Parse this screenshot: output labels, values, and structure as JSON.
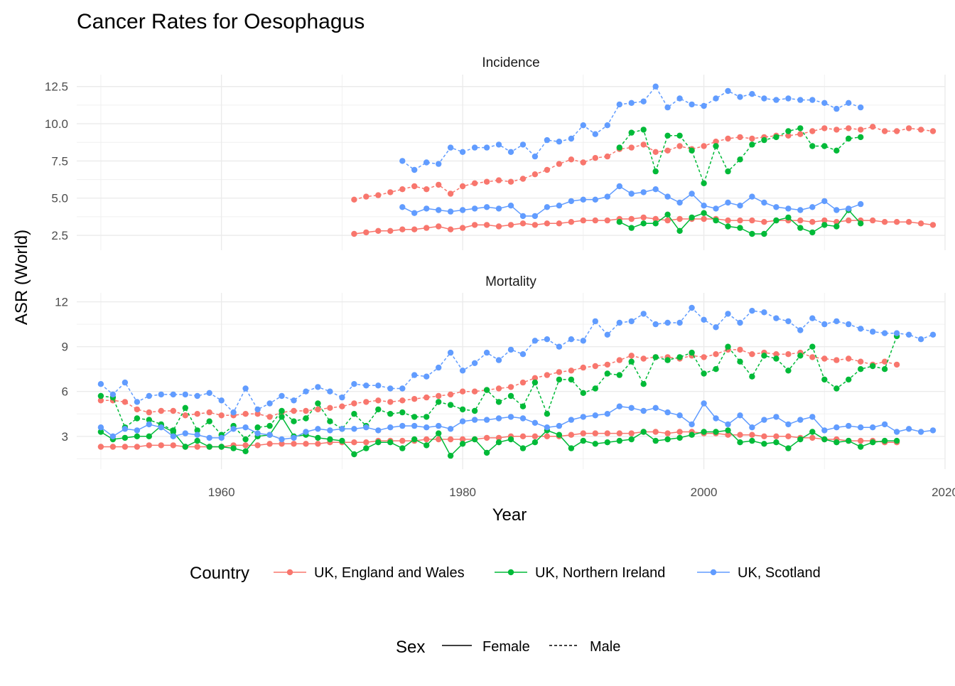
{
  "chart_data": {
    "type": "line",
    "title": "Cancer Rates for Oesophagus",
    "xlabel": "Year",
    "ylabel": "ASR (World)",
    "x_ticks": [
      1960,
      1980,
      2000,
      2020
    ],
    "xlim": [
      1948,
      2020
    ],
    "grid": true,
    "legend_position": "bottom",
    "legend": {
      "country_title": "Country",
      "sex_title": "Sex",
      "countries": [
        {
          "name": "UK, England and Wales",
          "color": "#F8766D"
        },
        {
          "name": "UK, Northern Ireland",
          "color": "#00BA38"
        },
        {
          "name": "UK, Scotland",
          "color": "#619CFF"
        }
      ],
      "sexes": [
        {
          "name": "Female",
          "dash": "solid"
        },
        {
          "name": "Male",
          "dash": "dashed"
        }
      ]
    },
    "panels": [
      {
        "title": "Incidence",
        "ylim": [
          1.5,
          13.3
        ],
        "y_ticks": [
          2.5,
          5.0,
          7.5,
          10.0,
          12.5
        ],
        "y_tick_labels": [
          "2.5",
          "5.0",
          "7.5",
          "10.0",
          "12.5"
        ],
        "series": [
          {
            "country": "UK, England and Wales",
            "sex": "Male",
            "start": 1971,
            "values": [
              4.9,
              5.1,
              5.2,
              5.4,
              5.6,
              5.8,
              5.6,
              5.9,
              5.3,
              5.8,
              6.0,
              6.1,
              6.2,
              6.1,
              6.3,
              6.6,
              6.9,
              7.3,
              7.6,
              7.4,
              7.7,
              7.8,
              8.3,
              8.4,
              8.6,
              8.1,
              8.2,
              8.5,
              8.3,
              8.5,
              8.8,
              9.0,
              9.1,
              9.0,
              9.1,
              9.2,
              9.2,
              9.3,
              9.5,
              9.7,
              9.6,
              9.7,
              9.6,
              9.8,
              9.5,
              9.5,
              9.7,
              9.6,
              9.5
            ]
          },
          {
            "country": "UK, England and Wales",
            "sex": "Female",
            "start": 1971,
            "values": [
              2.6,
              2.7,
              2.8,
              2.8,
              2.9,
              2.9,
              3.0,
              3.1,
              2.9,
              3.0,
              3.2,
              3.2,
              3.1,
              3.2,
              3.3,
              3.2,
              3.3,
              3.3,
              3.4,
              3.5,
              3.5,
              3.5,
              3.6,
              3.6,
              3.7,
              3.6,
              3.5,
              3.6,
              3.6,
              3.6,
              3.6,
              3.5,
              3.5,
              3.5,
              3.4,
              3.5,
              3.5,
              3.5,
              3.4,
              3.5,
              3.4,
              3.5,
              3.5,
              3.5,
              3.4,
              3.4,
              3.4,
              3.3,
              3.2
            ]
          },
          {
            "country": "UK, Northern Ireland",
            "sex": "Male",
            "start": 1993,
            "values": [
              8.4,
              9.4,
              9.6,
              6.8,
              9.2,
              9.2,
              8.2,
              6.0,
              8.5,
              6.8,
              7.6,
              8.6,
              8.9,
              9.1,
              9.5,
              9.7,
              8.5,
              8.5,
              8.2,
              9.0,
              9.1
            ]
          },
          {
            "country": "UK, Northern Ireland",
            "sex": "Female",
            "start": 1993,
            "values": [
              3.4,
              3.0,
              3.3,
              3.3,
              3.9,
              2.8,
              3.7,
              4.0,
              3.5,
              3.1,
              3.0,
              2.6,
              2.6,
              3.5,
              3.7,
              3.0,
              2.7,
              3.2,
              3.1,
              4.2,
              3.3
            ]
          },
          {
            "country": "UK, Scotland",
            "sex": "Male",
            "start": 1975,
            "values": [
              7.5,
              6.9,
              7.4,
              7.3,
              8.4,
              8.1,
              8.4,
              8.4,
              8.6,
              8.1,
              8.6,
              7.8,
              8.9,
              8.8,
              9.0,
              9.9,
              9.3,
              9.9,
              11.3,
              11.4,
              11.5,
              12.5,
              11.1,
              11.7,
              11.3,
              11.2,
              11.7,
              12.2,
              11.8,
              12.0,
              11.7,
              11.6,
              11.7,
              11.6,
              11.6,
              11.4,
              11.0,
              11.4,
              11.1
            ]
          },
          {
            "country": "UK, Scotland",
            "sex": "Female",
            "start": 1975,
            "values": [
              4.4,
              4.0,
              4.3,
              4.2,
              4.1,
              4.2,
              4.3,
              4.4,
              4.3,
              4.5,
              3.8,
              3.8,
              4.4,
              4.5,
              4.8,
              4.9,
              4.9,
              5.1,
              5.8,
              5.3,
              5.4,
              5.6,
              5.1,
              4.7,
              5.3,
              4.5,
              4.3,
              4.7,
              4.5,
              5.1,
              4.7,
              4.4,
              4.3,
              4.2,
              4.4,
              4.8,
              4.2,
              4.3,
              4.6
            ]
          }
        ]
      },
      {
        "title": "Mortality",
        "ylim": [
          0.8,
          12.6
        ],
        "y_ticks": [
          3,
          6,
          9,
          12
        ],
        "y_tick_labels": [
          "3",
          "6",
          "9",
          "12"
        ],
        "series": [
          {
            "country": "UK, England and Wales",
            "sex": "Male",
            "start": 1950,
            "values": [
              5.4,
              5.4,
              5.3,
              4.8,
              4.6,
              4.7,
              4.7,
              4.4,
              4.5,
              4.6,
              4.4,
              4.4,
              4.5,
              4.5,
              4.3,
              4.6,
              4.7,
              4.7,
              4.8,
              4.9,
              5.0,
              5.2,
              5.3,
              5.4,
              5.3,
              5.4,
              5.5,
              5.6,
              5.7,
              5.8,
              6.0,
              6.0,
              6.1,
              6.2,
              6.3,
              6.6,
              6.9,
              7.1,
              7.3,
              7.4,
              7.6,
              7.7,
              7.8,
              8.1,
              8.4,
              8.2,
              8.3,
              8.3,
              8.2,
              8.4,
              8.3,
              8.5,
              8.8,
              8.8,
              8.5,
              8.6,
              8.5,
              8.5,
              8.6,
              8.3,
              8.2,
              8.1,
              8.2,
              8.0,
              7.8,
              8.0,
              7.8
            ]
          },
          {
            "country": "UK, England and Wales",
            "sex": "Female",
            "start": 1950,
            "values": [
              2.3,
              2.3,
              2.3,
              2.3,
              2.4,
              2.4,
              2.4,
              2.3,
              2.3,
              2.3,
              2.3,
              2.4,
              2.4,
              2.4,
              2.5,
              2.5,
              2.5,
              2.5,
              2.5,
              2.6,
              2.6,
              2.6,
              2.6,
              2.7,
              2.7,
              2.7,
              2.7,
              2.8,
              2.8,
              2.8,
              2.8,
              2.8,
              2.9,
              2.9,
              3.0,
              3.0,
              3.0,
              3.0,
              3.0,
              3.1,
              3.2,
              3.2,
              3.2,
              3.2,
              3.2,
              3.3,
              3.3,
              3.2,
              3.3,
              3.3,
              3.2,
              3.2,
              3.1,
              3.1,
              3.1,
              3.0,
              3.0,
              3.0,
              2.9,
              2.9,
              2.8,
              2.8,
              2.7,
              2.7,
              2.7,
              2.6,
              2.6
            ]
          },
          {
            "country": "UK, Northern Ireland",
            "sex": "Male",
            "start": 1950,
            "values": [
              5.7,
              5.6,
              3.6,
              4.2,
              4.1,
              3.8,
              3.4,
              4.9,
              3.4,
              4.0,
              3.1,
              3.7,
              2.8,
              3.6,
              3.7,
              4.7,
              4.0,
              4.2,
              5.2,
              4.0,
              3.5,
              4.5,
              3.7,
              4.8,
              4.5,
              4.6,
              4.3,
              4.3,
              5.3,
              5.1,
              4.8,
              4.7,
              6.1,
              5.3,
              5.7,
              5.0,
              6.6,
              4.5,
              6.8,
              6.8,
              5.9,
              6.2,
              7.2,
              7.1,
              8.0,
              6.5,
              8.3,
              8.1,
              8.3,
              8.6,
              7.2,
              7.5,
              9.0,
              8.0,
              7.0,
              8.4,
              8.2,
              7.4,
              8.4,
              9.0,
              6.8,
              6.2,
              6.8,
              7.5,
              7.7,
              7.5,
              9.7
            ]
          },
          {
            "country": "UK, Northern Ireland",
            "sex": "Female",
            "start": 1950,
            "values": [
              3.3,
              2.8,
              2.9,
              3.0,
              3.0,
              3.7,
              3.3,
              2.3,
              2.7,
              2.3,
              2.3,
              2.2,
              2.0,
              3.0,
              3.1,
              4.3,
              3.0,
              3.1,
              2.9,
              2.8,
              2.7,
              1.8,
              2.2,
              2.6,
              2.6,
              2.2,
              2.8,
              2.4,
              3.2,
              1.7,
              2.5,
              2.8,
              1.9,
              2.6,
              2.8,
              2.2,
              2.6,
              3.4,
              3.1,
              2.2,
              2.7,
              2.5,
              2.6,
              2.7,
              2.8,
              3.3,
              2.7,
              2.8,
              2.9,
              3.1,
              3.3,
              3.3,
              3.4,
              2.6,
              2.7,
              2.5,
              2.6,
              2.2,
              2.8,
              3.3,
              2.8,
              2.6,
              2.7,
              2.3,
              2.6,
              2.7,
              2.7
            ]
          },
          {
            "country": "UK, Scotland",
            "sex": "Male",
            "start": 1950,
            "values": [
              6.5,
              5.8,
              6.6,
              5.3,
              5.7,
              5.8,
              5.8,
              5.8,
              5.7,
              5.9,
              5.4,
              4.6,
              6.2,
              4.8,
              5.2,
              5.7,
              5.4,
              6.0,
              6.3,
              6.0,
              5.6,
              6.5,
              6.4,
              6.4,
              6.2,
              6.2,
              7.1,
              7.0,
              7.6,
              8.6,
              7.4,
              7.9,
              8.6,
              8.1,
              8.8,
              8.5,
              9.4,
              9.5,
              9.0,
              9.5,
              9.4,
              10.7,
              9.8,
              10.6,
              10.7,
              11.2,
              10.5,
              10.6,
              10.6,
              11.6,
              10.8,
              10.3,
              11.2,
              10.6,
              11.4,
              11.3,
              10.9,
              10.7,
              10.1,
              10.9,
              10.5,
              10.7,
              10.5,
              10.2,
              10.0,
              9.9,
              9.9,
              9.8,
              9.5,
              9.8
            ]
          },
          {
            "country": "UK, Scotland",
            "sex": "Female",
            "start": 1950,
            "values": [
              3.6,
              3.0,
              3.5,
              3.4,
              3.8,
              3.6,
              3.0,
              3.2,
              3.1,
              2.9,
              2.9,
              3.5,
              3.6,
              3.2,
              3.1,
              2.8,
              2.9,
              3.3,
              3.5,
              3.4,
              3.5,
              3.5,
              3.6,
              3.4,
              3.6,
              3.7,
              3.7,
              3.6,
              3.7,
              3.5,
              4.0,
              4.1,
              4.1,
              4.2,
              4.3,
              4.2,
              3.9,
              3.6,
              3.7,
              4.1,
              4.3,
              4.4,
              4.5,
              5.0,
              4.9,
              4.7,
              4.9,
              4.6,
              4.4,
              3.8,
              5.2,
              4.2,
              3.8,
              4.4,
              3.6,
              4.1,
              4.3,
              3.8,
              4.1,
              4.3,
              3.4,
              3.6,
              3.7,
              3.6,
              3.6,
              3.8,
              3.3,
              3.5,
              3.3,
              3.4
            ]
          }
        ]
      }
    ]
  }
}
